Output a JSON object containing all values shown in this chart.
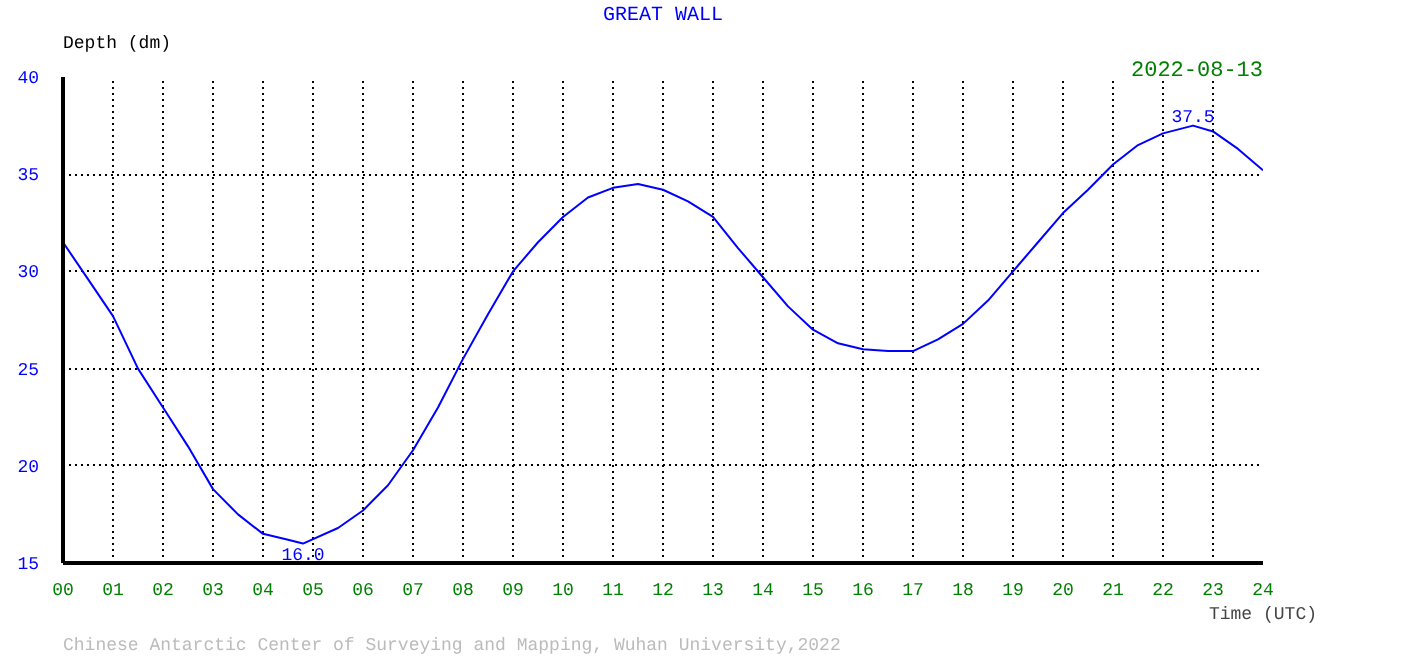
{
  "chart_data": {
    "type": "line",
    "title": "GREAT WALL",
    "xlabel": "Time (UTC)",
    "ylabel": "Depth (dm)",
    "x": [
      0,
      0.5,
      1,
      1.5,
      2,
      2.5,
      3,
      3.5,
      4,
      4.5,
      4.8,
      5.5,
      6,
      6.5,
      7,
      7.5,
      8,
      8.5,
      9,
      9.5,
      10,
      10.5,
      11,
      11.5,
      12,
      12.5,
      13,
      13.5,
      14,
      14.5,
      15,
      15.5,
      16,
      16.5,
      17,
      17.5,
      18,
      18.5,
      19,
      19.5,
      20,
      20.5,
      21,
      21.5,
      22,
      22.6,
      23,
      23.5,
      24
    ],
    "series": [
      {
        "color": "#0000ff",
        "values": [
          31.5,
          29.6,
          27.7,
          25.0,
          23.0,
          21.0,
          18.8,
          17.5,
          16.5,
          16.2,
          16.0,
          16.8,
          17.7,
          19.0,
          20.8,
          23.0,
          25.5,
          27.8,
          30.0,
          31.5,
          32.8,
          33.8,
          34.3,
          34.5,
          34.2,
          33.6,
          32.8,
          31.2,
          29.7,
          28.2,
          27.0,
          26.3,
          26.0,
          25.9,
          25.9,
          26.5,
          27.3,
          28.5,
          30.0,
          31.5,
          33.0,
          34.2,
          35.5,
          36.5,
          37.1,
          37.5,
          37.2,
          36.3,
          35.2
        ]
      }
    ],
    "xlim": [
      0,
      24
    ],
    "ylim": [
      15,
      40
    ],
    "xticks": [
      {
        "value": 0,
        "label": "00"
      },
      {
        "value": 1,
        "label": "01"
      },
      {
        "value": 2,
        "label": "02"
      },
      {
        "value": 3,
        "label": "03"
      },
      {
        "value": 4,
        "label": "04"
      },
      {
        "value": 5,
        "label": "05"
      },
      {
        "value": 6,
        "label": "06"
      },
      {
        "value": 7,
        "label": "07"
      },
      {
        "value": 8,
        "label": "08"
      },
      {
        "value": 9,
        "label": "09"
      },
      10,
      11,
      12,
      13,
      14,
      15,
      16,
      17,
      18,
      19,
      20,
      21,
      22,
      23,
      24
    ],
    "yticks": [
      15,
      20,
      25,
      30,
      35,
      40
    ],
    "grid": true,
    "marker": "none",
    "line_style": "solid",
    "annotations": [
      {
        "text": "16.0",
        "x": 4.8,
        "y": 16.0
      },
      {
        "text": "37.5",
        "x": 22.6,
        "y": 37.5
      },
      "2022-08-13",
      "Chinese Antarctic Center of Surveying and Mapping, Wuhan University,2022"
    ]
  }
}
